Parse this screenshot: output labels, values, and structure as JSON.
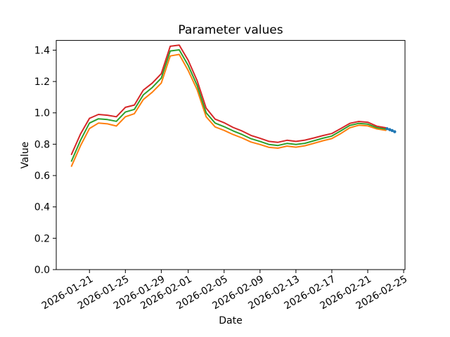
{
  "figure": {
    "title": "Parameter values",
    "xlabel": "Date",
    "ylabel": "Value",
    "background": "#ffffff",
    "spine_color": "#000000"
  },
  "chart_data": {
    "type": "line",
    "title": "Parameter values",
    "xlabel": "Date",
    "ylabel": "Value",
    "grid": false,
    "legend": null,
    "x_dates": [
      "2026-01-19",
      "2026-01-20",
      "2026-01-21",
      "2026-01-22",
      "2026-01-23",
      "2026-01-24",
      "2026-01-25",
      "2026-01-26",
      "2026-01-27",
      "2026-01-28",
      "2026-01-29",
      "2026-01-30",
      "2026-01-31",
      "2026-02-01",
      "2026-02-02",
      "2026-02-03",
      "2026-02-04",
      "2026-02-05",
      "2026-02-06",
      "2026-02-07",
      "2026-02-08",
      "2026-02-09",
      "2026-02-10",
      "2026-02-11",
      "2026-02-12",
      "2026-02-13",
      "2026-02-14",
      "2026-02-15",
      "2026-02-16",
      "2026-02-17",
      "2026-02-18",
      "2026-02-19",
      "2026-02-20",
      "2026-02-21",
      "2026-02-22",
      "2026-02-23"
    ],
    "series": [
      {
        "name": "red-series",
        "color": "#d62728",
        "values": [
          0.735,
          0.865,
          0.965,
          0.99,
          0.985,
          0.975,
          1.035,
          1.05,
          1.145,
          1.19,
          1.25,
          1.425,
          1.432,
          1.335,
          1.205,
          1.03,
          0.96,
          0.937,
          0.907,
          0.884,
          0.856,
          0.838,
          0.818,
          0.812,
          0.825,
          0.818,
          0.826,
          0.84,
          0.855,
          0.868,
          0.9,
          0.933,
          0.945,
          0.94,
          0.915,
          0.905
        ]
      },
      {
        "name": "green-series",
        "color": "#2ca02c",
        "values": [
          0.692,
          0.825,
          0.935,
          0.962,
          0.957,
          0.946,
          1.005,
          1.022,
          1.115,
          1.162,
          1.222,
          1.395,
          1.402,
          1.302,
          1.175,
          1.0,
          0.935,
          0.912,
          0.885,
          0.862,
          0.835,
          0.818,
          0.798,
          0.792,
          0.805,
          0.798,
          0.806,
          0.822,
          0.838,
          0.852,
          0.885,
          0.92,
          0.933,
          0.928,
          0.906,
          0.897
        ]
      },
      {
        "name": "orange-series",
        "color": "#ff7f0e",
        "values": [
          0.66,
          0.79,
          0.9,
          0.935,
          0.93,
          0.916,
          0.975,
          0.995,
          1.085,
          1.132,
          1.19,
          1.363,
          1.373,
          1.27,
          1.147,
          0.975,
          0.91,
          0.888,
          0.862,
          0.84,
          0.814,
          0.798,
          0.78,
          0.775,
          0.788,
          0.781,
          0.79,
          0.806,
          0.822,
          0.836,
          0.868,
          0.905,
          0.921,
          0.917,
          0.898,
          0.888
        ]
      }
    ],
    "scatter": {
      "name": "blue-endpoint-dots",
      "color": "#1f77b4",
      "points": [
        {
          "x_day": 35.15,
          "value": 0.899
        },
        {
          "x_day": 35.45,
          "value": 0.893
        },
        {
          "x_day": 35.72,
          "value": 0.887
        },
        {
          "x_day": 36.0,
          "value": 0.88
        }
      ]
    },
    "x_ticks": [
      "2026-01-21",
      "2026-01-25",
      "2026-01-29",
      "2026-02-01",
      "2026-02-05",
      "2026-02-09",
      "2026-02-13",
      "2026-02-17",
      "2026-02-21",
      "2026-02-25"
    ],
    "y_ticks": [
      "0.0",
      "0.2",
      "0.4",
      "0.6",
      "0.8",
      "1.0",
      "1.2",
      "1.4"
    ],
    "ylim": [
      0,
      1.462
    ],
    "xlim_days": [
      -1.7,
      37.15
    ]
  }
}
